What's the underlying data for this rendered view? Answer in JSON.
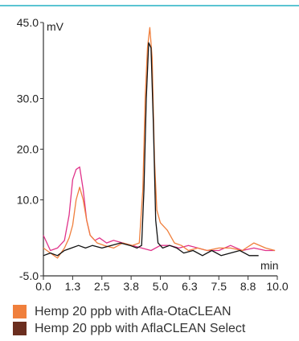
{
  "chart_data": {
    "type": "line",
    "xlabel": "min",
    "ylabel": "mV",
    "xlim": [
      0.0,
      10.0
    ],
    "ylim": [
      -5.0,
      45.0
    ],
    "x_ticks": [
      "0.0",
      "1.3",
      "2.5",
      "3.8",
      "5.0",
      "6.3",
      "7.5",
      "8.8",
      "10.0"
    ],
    "y_ticks": [
      "-5.0",
      "10.0",
      "20.0",
      "30.0",
      "45.0"
    ],
    "y_tick_values": [
      -5.0,
      10.0,
      20.0,
      30.0,
      45.0
    ],
    "grid": false,
    "legend_position": "bottom",
    "legend": [
      {
        "label": "Hemp 20 ppb with Afla-OtaCLEAN",
        "color": "#f07f3c"
      },
      {
        "label": "Hemp 20 ppb with AflaCLEAN Select",
        "color": "#6b2e1f"
      }
    ],
    "series": [
      {
        "name": "Hemp 20 ppb with Afla-OtaCLEAN",
        "color": "#f07f3c",
        "x": [
          0.0,
          0.3,
          0.6,
          0.9,
          1.1,
          1.25,
          1.4,
          1.55,
          1.7,
          1.85,
          2.0,
          2.3,
          2.6,
          3.0,
          3.4,
          3.8,
          4.1,
          4.25,
          4.35,
          4.45,
          4.55,
          4.65,
          4.75,
          4.85,
          5.0,
          5.3,
          5.6,
          5.9,
          6.2,
          6.6,
          7.0,
          7.5,
          8.0,
          8.5,
          9.0,
          9.5,
          9.9
        ],
        "y": [
          0.5,
          -0.5,
          -1.5,
          0.5,
          2.5,
          5.0,
          10.0,
          12.5,
          10.0,
          6.0,
          3.0,
          1.5,
          1.0,
          0.5,
          1.5,
          1.0,
          1.5,
          12.0,
          30.0,
          40.0,
          44.0,
          38.0,
          18.0,
          8.0,
          5.5,
          4.0,
          1.5,
          1.0,
          0.0,
          0.5,
          0.0,
          0.5,
          0.5,
          0.0,
          1.5,
          0.5,
          0.0
        ]
      },
      {
        "name": "Hemp 20 ppb with AflaCLEAN Select",
        "color": "#111111",
        "x": [
          0.0,
          0.3,
          0.6,
          0.9,
          1.2,
          1.5,
          1.8,
          2.1,
          2.5,
          2.9,
          3.3,
          3.7,
          4.0,
          4.2,
          4.3,
          4.4,
          4.5,
          4.6,
          4.7,
          4.8,
          4.9,
          5.1,
          5.4,
          5.7,
          6.0,
          6.4,
          6.8,
          7.2,
          7.6,
          8.0,
          8.4,
          8.8,
          9.2
        ],
        "y": [
          -1.0,
          -0.5,
          -1.0,
          0.0,
          0.5,
          1.0,
          0.5,
          1.0,
          0.5,
          1.0,
          1.5,
          1.0,
          0.5,
          1.0,
          12.0,
          30.0,
          41.0,
          40.0,
          25.0,
          6.0,
          1.5,
          0.5,
          1.0,
          0.5,
          -0.5,
          0.0,
          -1.0,
          0.0,
          -1.0,
          -0.5,
          0.0,
          -1.0,
          -1.0
        ]
      },
      {
        "name": "",
        "color": "#e0338a",
        "x": [
          0.0,
          0.3,
          0.6,
          0.9,
          1.1,
          1.25,
          1.4,
          1.55,
          1.7,
          1.85,
          2.0,
          2.2,
          2.4,
          2.7,
          3.0,
          3.4,
          3.8,
          4.2,
          4.6,
          5.0,
          5.4,
          5.8,
          6.2,
          6.6,
          7.0,
          7.5,
          8.0,
          8.5,
          9.0,
          9.5,
          9.9
        ],
        "y": [
          3.0,
          0.0,
          0.5,
          2.0,
          7.0,
          14.0,
          16.0,
          16.5,
          12.0,
          6.0,
          3.0,
          2.0,
          2.5,
          1.5,
          2.0,
          1.5,
          1.0,
          0.5,
          0.0,
          1.0,
          1.0,
          0.5,
          1.0,
          0.5,
          0.0,
          0.0,
          1.0,
          0.0,
          0.5,
          0.0,
          0.0
        ]
      }
    ]
  }
}
